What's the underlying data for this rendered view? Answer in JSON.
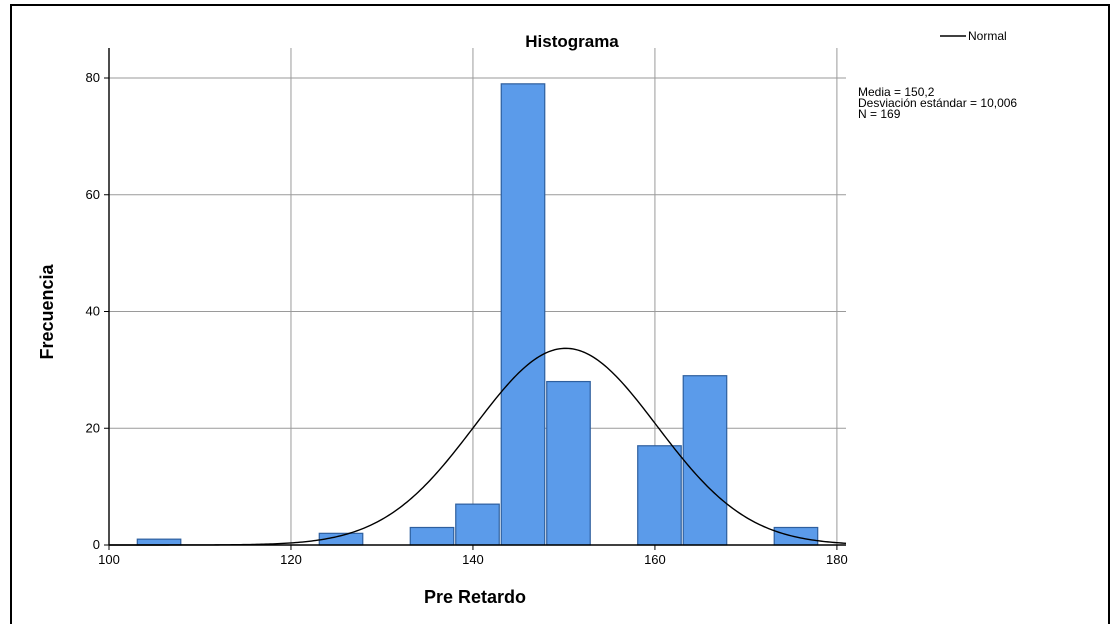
{
  "chart_data": {
    "type": "bar",
    "subtype": "histogram",
    "title": "Histograma",
    "xlabel": "Pre Retardo",
    "ylabel": "Frecuencia",
    "xlim": [
      100,
      181
    ],
    "ylim": [
      0,
      80
    ],
    "xticks": [
      "100",
      "120",
      "140",
      "160",
      "180"
    ],
    "yticks": [
      "0",
      "20",
      "40",
      "60",
      "80"
    ],
    "grid": true,
    "bin_width": 5,
    "bins": [
      {
        "start": 103,
        "end": 108,
        "count": 1
      },
      {
        "start": 123,
        "end": 128,
        "count": 2
      },
      {
        "start": 133,
        "end": 138,
        "count": 3
      },
      {
        "start": 138,
        "end": 143,
        "count": 7
      },
      {
        "start": 143,
        "end": 148,
        "count": 79
      },
      {
        "start": 148,
        "end": 153,
        "count": 28
      },
      {
        "start": 158,
        "end": 163,
        "count": 17
      },
      {
        "start": 163,
        "end": 168,
        "count": 29
      },
      {
        "start": 173,
        "end": 178,
        "count": 3
      }
    ],
    "normal_curve": {
      "mean": 150.2,
      "sd": 10.006,
      "n": 169,
      "bin_width": 5
    },
    "legend": {
      "entries": [
        "Normal"
      ],
      "placement": "top-right"
    },
    "stats_lines": [
      "Media = 150,2",
      "Desviación estándar = 10,006",
      "N = 169"
    ],
    "colors": {
      "bar_fill": "#5b9bea",
      "bar_stroke": "#2e5f9e",
      "grid": "#9a9a9a",
      "curve": "#000000"
    }
  }
}
